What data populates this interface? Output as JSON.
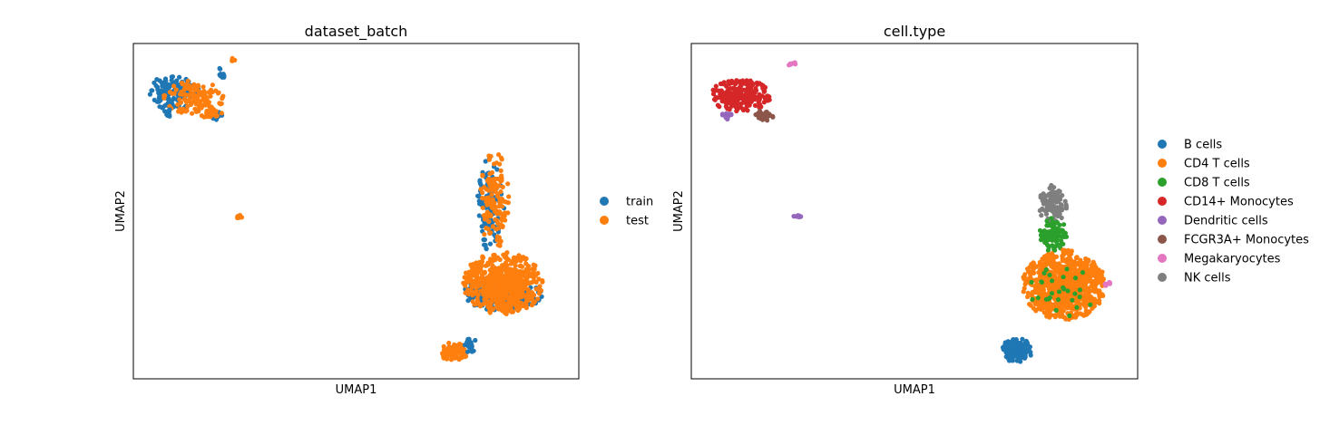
{
  "figure": {
    "background": "#ffffff"
  },
  "chart_data": [
    {
      "type": "scatter",
      "title": "dataset_batch",
      "xlabel": "UMAP1",
      "ylabel": "UMAP2",
      "ticks": false,
      "grid": false,
      "legend_position": "right",
      "xlim": [
        0,
        100
      ],
      "ylim": [
        0,
        100
      ],
      "series": [
        {
          "name": "train",
          "color": "#1f77b4"
        },
        {
          "name": "test",
          "color": "#ff7f0e"
        }
      ],
      "clusters": [
        {
          "series": 0,
          "cx": 9,
          "cy": 85.5,
          "rx": 5.5,
          "ry": 5,
          "n": 130
        },
        {
          "series": 1,
          "cx": 13.5,
          "cy": 84,
          "rx": 6.5,
          "ry": 5,
          "n": 130
        },
        {
          "series": 0,
          "cx": 19,
          "cy": 78.5,
          "rx": 1.5,
          "ry": 1.2,
          "n": 14
        },
        {
          "series": 1,
          "cx": 17.5,
          "cy": 79,
          "rx": 2.5,
          "ry": 1.6,
          "n": 22
        },
        {
          "series": 0,
          "cx": 8,
          "cy": 79.5,
          "rx": 1.2,
          "ry": 1.2,
          "n": 12
        },
        {
          "series": 0,
          "cx": 20,
          "cy": 90.5,
          "rx": 1.8,
          "ry": 0.8,
          "n": 10
        },
        {
          "series": 1,
          "cx": 22.5,
          "cy": 95,
          "rx": 0.8,
          "ry": 0.6,
          "n": 5
        },
        {
          "series": 0,
          "cx": 19.5,
          "cy": 92.5,
          "rx": 0.3,
          "ry": 0.3,
          "n": 2
        },
        {
          "series": 1,
          "cx": 23.5,
          "cy": 48.5,
          "rx": 1,
          "ry": 0.6,
          "n": 8
        },
        {
          "series": 0,
          "cx": 83,
          "cy": 25.5,
          "rx": 8.5,
          "ry": 5,
          "n": 280
        },
        {
          "series": 0,
          "cx": 80,
          "cy": 52,
          "rx": 3.2,
          "ry": 13,
          "n": 110
        },
        {
          "series": 1,
          "cx": 81,
          "cy": 53,
          "rx": 3.2,
          "ry": 14,
          "n": 140
        },
        {
          "series": 1,
          "cx": 83,
          "cy": 28.5,
          "rx": 8.5,
          "ry": 9,
          "n": 620
        },
        {
          "series": 1,
          "cx": 72,
          "cy": 8,
          "rx": 2.8,
          "ry": 2.8,
          "n": 90
        },
        {
          "series": 0,
          "cx": 75.5,
          "cy": 10,
          "rx": 1.8,
          "ry": 2,
          "n": 20
        }
      ]
    },
    {
      "type": "scatter",
      "title": "cell.type",
      "xlabel": "UMAP1",
      "ylabel": "UMAP2",
      "ticks": false,
      "grid": false,
      "legend_position": "right",
      "xlim": [
        0,
        100
      ],
      "ylim": [
        0,
        100
      ],
      "series": [
        {
          "name": "B cells",
          "color": "#1f77b4"
        },
        {
          "name": "CD4 T cells",
          "color": "#ff7f0e"
        },
        {
          "name": "CD8 T cells",
          "color": "#2ca02c"
        },
        {
          "name": "CD14+ Monocytes",
          "color": "#d62728"
        },
        {
          "name": "Dendritic cells",
          "color": "#9467bd"
        },
        {
          "name": "FCGR3A+ Monocytes",
          "color": "#8c564b"
        },
        {
          "name": "Megakaryocytes",
          "color": "#e377c2"
        },
        {
          "name": "NK cells",
          "color": "#7f7f7f"
        }
      ],
      "clusters": [
        {
          "series": 0,
          "cx": 73,
          "cy": 8.5,
          "rx": 3.4,
          "ry": 3.4,
          "n": 150
        },
        {
          "series": 7,
          "cx": 81,
          "cy": 52,
          "rx": 3,
          "ry": 5.5,
          "n": 110
        },
        {
          "series": 2,
          "cx": 81,
          "cy": 43,
          "rx": 3,
          "ry": 5,
          "n": 100
        },
        {
          "series": 1,
          "cx": 83.5,
          "cy": 28,
          "rx": 9,
          "ry": 10,
          "n": 850
        },
        {
          "series": 2,
          "cx": 83,
          "cy": 26,
          "rx": 7,
          "ry": 8,
          "n": 30
        },
        {
          "series": 6,
          "cx": 93.5,
          "cy": 28,
          "rx": 0.8,
          "ry": 0.8,
          "n": 6
        },
        {
          "series": 3,
          "cx": 11,
          "cy": 84.5,
          "rx": 6.5,
          "ry": 4.5,
          "n": 220
        },
        {
          "series": 5,
          "cx": 16.5,
          "cy": 78.5,
          "rx": 2,
          "ry": 1.6,
          "n": 35
        },
        {
          "series": 4,
          "cx": 8,
          "cy": 78.5,
          "rx": 1.2,
          "ry": 1.2,
          "n": 14
        },
        {
          "series": 6,
          "cx": 22.5,
          "cy": 94,
          "rx": 1.5,
          "ry": 0.8,
          "n": 8
        },
        {
          "series": 4,
          "cx": 24,
          "cy": 48.5,
          "rx": 1,
          "ry": 0.6,
          "n": 8
        }
      ]
    }
  ]
}
